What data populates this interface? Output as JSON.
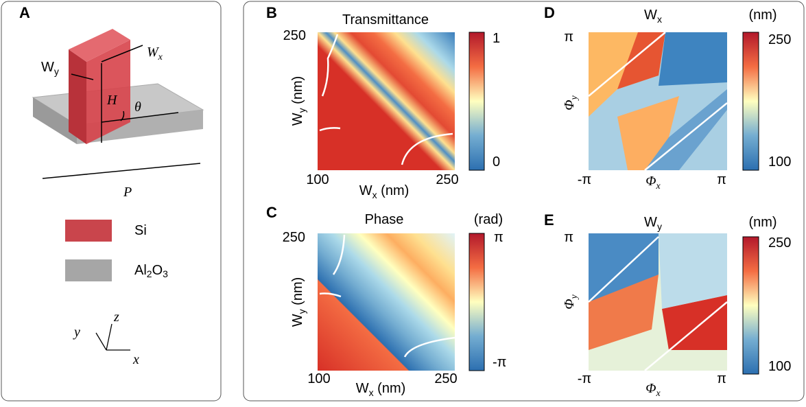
{
  "panel_a": {
    "label": "A",
    "wy": {
      "base": "W",
      "sub": "y"
    },
    "wx": {
      "base": "W",
      "sub": "x"
    },
    "height": "H",
    "angle": "θ",
    "period": "P",
    "legend_si": "Si",
    "legend_al2o3": [
      "Al",
      "2",
      "O",
      "3"
    ],
    "axes": {
      "y": "y",
      "z": "z",
      "x": "x"
    }
  },
  "panel_b": {
    "label": "B",
    "title": "Transmittance",
    "ylabel": {
      "base": "W",
      "sub": "y",
      "unit": " (nm)"
    },
    "xlabel": {
      "base": "W",
      "sub": "x",
      "unit": " (nm)"
    },
    "yticks": [
      250
    ],
    "xticks": [
      100,
      250
    ],
    "colorbar_ticks": [
      1,
      0
    ]
  },
  "panel_c": {
    "label": "C",
    "title": "Phase",
    "unit": "(rad)",
    "ylabel": {
      "base": "W",
      "sub": "y",
      "unit": " (nm)"
    },
    "xlabel": {
      "base": "W",
      "sub": "x",
      "unit": " (nm)"
    },
    "yticks": [
      250
    ],
    "xticks": [
      100,
      250
    ],
    "colorbar_ticks": [
      "π",
      "-π"
    ]
  },
  "panel_d": {
    "label": "D",
    "title": {
      "base": "W",
      "sub": "x"
    },
    "unit": "(nm)",
    "ylabel": {
      "base": "Φ",
      "sub": "y"
    },
    "xlabel": {
      "base": "Φ",
      "sub": "x"
    },
    "yticks": [
      "π"
    ],
    "xticks": [
      "-π",
      "π"
    ],
    "colorbar_ticks": [
      250,
      100
    ]
  },
  "panel_e": {
    "label": "E",
    "title": {
      "base": "W",
      "sub": "y"
    },
    "unit": "(nm)",
    "ylabel": {
      "base": "Φ",
      "sub": "y"
    },
    "xlabel": {
      "base": "Φ",
      "sub": "x"
    },
    "yticks": [
      "π"
    ],
    "xticks": [
      "-π",
      "π"
    ],
    "colorbar_ticks": [
      250,
      100
    ]
  }
}
